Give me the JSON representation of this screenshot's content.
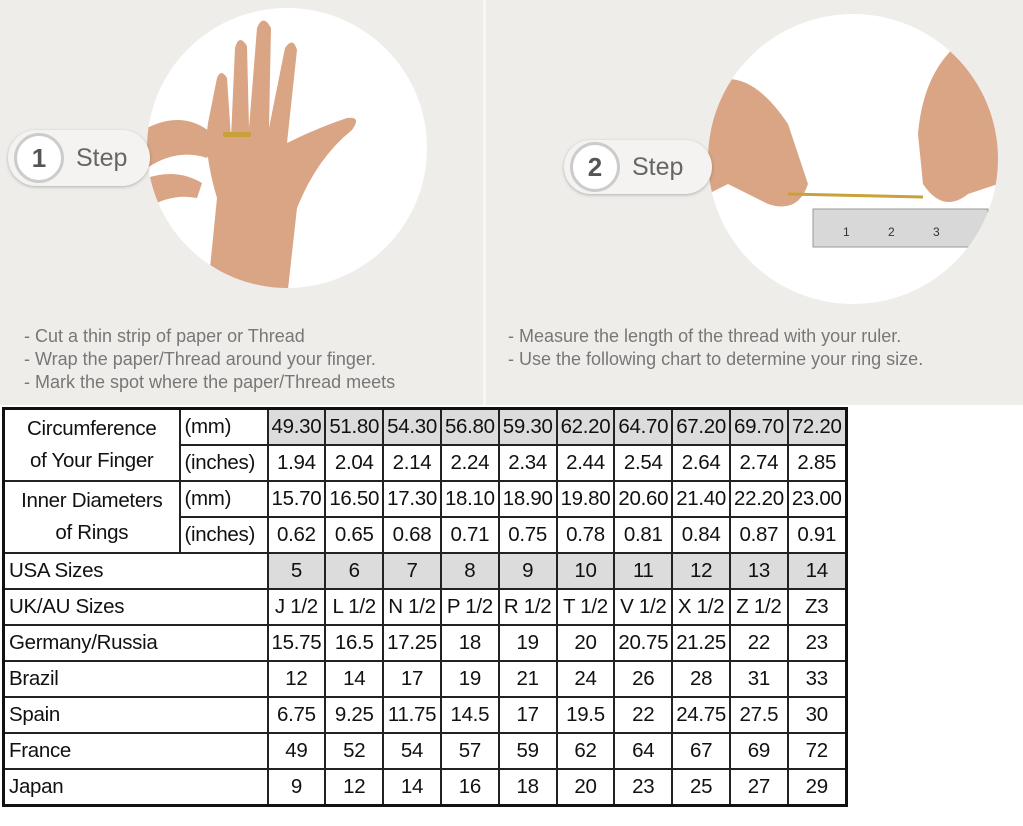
{
  "steps": [
    {
      "number": "1",
      "label": "Step",
      "instructions": [
        "Cut a thin strip of paper or Thread",
        "Wrap the paper/Thread around your finger.",
        "Mark the spot where the paper/Thread meets"
      ]
    },
    {
      "number": "2",
      "label": "Step",
      "instructions": [
        "Measure the length of the thread with your ruler.",
        "Use the following chart to determine your ring size."
      ]
    }
  ],
  "ruler_marks": [
    "1",
    "2",
    "3"
  ],
  "table": {
    "circumference": {
      "label_line1": "Circumference",
      "label_line2": "of Your Finger",
      "mm_unit": "(mm)",
      "mm": [
        "49.30",
        "51.80",
        "54.30",
        "56.80",
        "59.30",
        "62.20",
        "64.70",
        "67.20",
        "69.70",
        "72.20"
      ],
      "in_unit": "(inches)",
      "inches": [
        "1.94",
        "2.04",
        "2.14",
        "2.24",
        "2.34",
        "2.44",
        "2.54",
        "2.64",
        "2.74",
        "2.85"
      ]
    },
    "inner_diameter": {
      "label_line1": "Inner Diameters",
      "label_line2": "of Rings",
      "mm_unit": "(mm)",
      "mm": [
        "15.70",
        "16.50",
        "17.30",
        "18.10",
        "18.90",
        "19.80",
        "20.60",
        "21.40",
        "22.20",
        "23.00"
      ],
      "in_unit": "(inches)",
      "inches": [
        "0.62",
        "0.65",
        "0.68",
        "0.71",
        "0.75",
        "0.78",
        "0.81",
        "0.84",
        "0.87",
        "0.91"
      ]
    },
    "rows": [
      {
        "label": "USA Sizes",
        "values": [
          "5",
          "6",
          "7",
          "8",
          "9",
          "10",
          "11",
          "12",
          "13",
          "14"
        ]
      },
      {
        "label": "UK/AU Sizes",
        "values": [
          "J 1/2",
          "L 1/2",
          "N 1/2",
          "P 1/2",
          "R 1/2",
          "T 1/2",
          "V 1/2",
          "X 1/2",
          "Z 1/2",
          "Z3"
        ]
      },
      {
        "label": "Germany/Russia",
        "values": [
          "15.75",
          "16.5",
          "17.25",
          "18",
          "19",
          "20",
          "20.75",
          "21.25",
          "22",
          "23"
        ]
      },
      {
        "label": "Brazil",
        "values": [
          "12",
          "14",
          "17",
          "19",
          "21",
          "24",
          "26",
          "28",
          "31",
          "33"
        ]
      },
      {
        "label": "Spain",
        "values": [
          "6.75",
          "9.25",
          "11.75",
          "14.5",
          "17",
          "19.5",
          "22",
          "24.75",
          "27.5",
          "30"
        ]
      },
      {
        "label": "France",
        "values": [
          "49",
          "52",
          "54",
          "57",
          "59",
          "62",
          "64",
          "67",
          "69",
          "72"
        ]
      },
      {
        "label": "Japan",
        "values": [
          "9",
          "12",
          "14",
          "16",
          "18",
          "20",
          "23",
          "25",
          "27",
          "29"
        ]
      }
    ],
    "shade_color": "#dcdcdc"
  }
}
